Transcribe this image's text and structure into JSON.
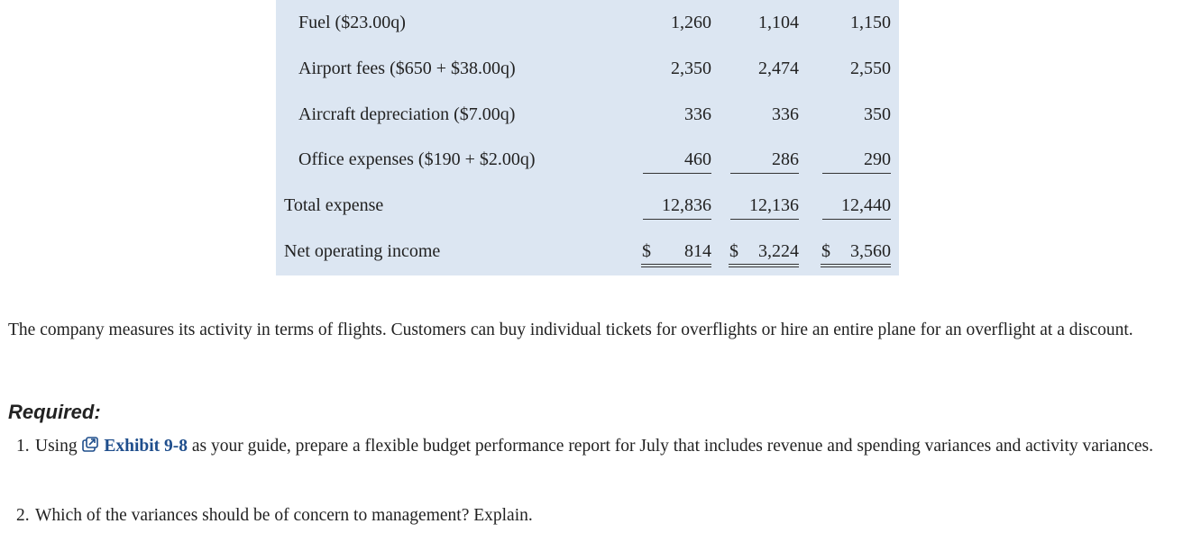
{
  "table": {
    "rows": [
      {
        "label": "Fuel ($23.00q)",
        "values": [
          "1,260",
          "1,104",
          "1,150"
        ]
      },
      {
        "label": "Airport fees ($650 + $38.00q)",
        "values": [
          "2,350",
          "2,474",
          "2,550"
        ]
      },
      {
        "label": "Aircraft depreciation ($7.00q)",
        "values": [
          "336",
          "336",
          "350"
        ]
      },
      {
        "label": "Office expenses ($190 + $2.00q)",
        "values": [
          "460",
          "286",
          "290"
        ]
      },
      {
        "label": "Total expense",
        "values": [
          "12,836",
          "12,136",
          "12,440"
        ]
      },
      {
        "label": "Net operating income",
        "currency": "$",
        "values": [
          "814",
          "3,224",
          "3,560"
        ]
      }
    ]
  },
  "paragraph": "The company measures its activity in terms of flights. Customers can buy individual tickets for overflights or hire an entire plane for an overflight at a discount.",
  "required": {
    "heading": "Required:",
    "items": [
      {
        "number": "1.",
        "before": "Using",
        "link": "Exhibit 9-8",
        "after": "as your guide, prepare a flexible budget performance report for July that includes revenue and spending variances and activity variances."
      },
      {
        "number": "2.",
        "text": "Which of the variances should be of concern to management? Explain."
      }
    ]
  }
}
